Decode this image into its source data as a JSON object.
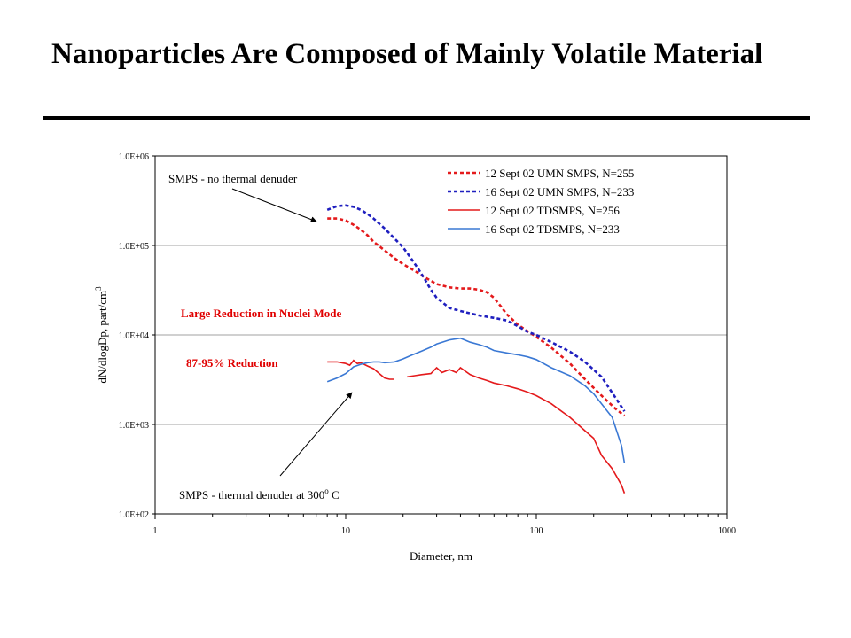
{
  "slide": {
    "title": "Nanoparticles Are Composed of Mainly Volatile Material"
  },
  "colors": {
    "red": "#e41a1c",
    "blue": "#1f1fbf",
    "light_blue": "#3a78d4",
    "grid": "#a0a0a0",
    "annotation_red": "#e00000"
  },
  "chart_data": {
    "type": "line",
    "title": "",
    "xlabel": "Diameter, nm",
    "ylabel": "dN/dlogDp, part/cm",
    "ylabel_superscript": "3",
    "x_scale": "log",
    "y_scale": "log",
    "xlim": [
      1,
      1000
    ],
    "ylim": [
      100,
      1000000
    ],
    "x_tick_labels": [
      "1",
      "10",
      "100",
      "1000"
    ],
    "y_tick_labels": [
      "1.0E+02",
      "1.0E+03",
      "1.0E+04",
      "1.0E+05",
      "1.0E+06"
    ],
    "y_tick_values": [
      100,
      1000,
      10000,
      100000,
      1000000
    ],
    "x_tick_values": [
      1,
      10,
      100,
      1000
    ],
    "grid": "horizontal",
    "legend_position": "top-right",
    "series": [
      {
        "name": "12 Sept 02 UMN SMPS, N=255",
        "style": "dashed",
        "color": "#e41a1c",
        "x": [
          8,
          9,
          10,
          11,
          12,
          13,
          14,
          16,
          18,
          20,
          23,
          26,
          30,
          35,
          40,
          45,
          50,
          55,
          60,
          65,
          70,
          80,
          90,
          100,
          120,
          150,
          180,
          220,
          260,
          290
        ],
        "y": [
          200000,
          200000,
          190000,
          170000,
          150000,
          130000,
          110000,
          88000,
          72000,
          62000,
          52000,
          44000,
          37000,
          34000,
          33000,
          33000,
          32000,
          30000,
          26000,
          21000,
          17000,
          13000,
          11000,
          9500,
          7200,
          4800,
          3200,
          2100,
          1500,
          1250
        ]
      },
      {
        "name": "16 Sept 02 UMN SMPS, N=233",
        "style": "dashed",
        "color": "#1f1fbf",
        "x": [
          8,
          9,
          10,
          11,
          12,
          13,
          14,
          16,
          18,
          20,
          22,
          24,
          26,
          28,
          30,
          35,
          40,
          50,
          60,
          70,
          80,
          90,
          100,
          120,
          150,
          180,
          220,
          260,
          290
        ],
        "y": [
          250000,
          275000,
          280000,
          270000,
          250000,
          225000,
          200000,
          155000,
          120000,
          95000,
          72000,
          55000,
          42000,
          32000,
          26000,
          20000,
          18500,
          16500,
          15500,
          14500,
          12500,
          10800,
          10000,
          8300,
          6500,
          5000,
          3400,
          2000,
          1400
        ]
      },
      {
        "name": "12 Sept 02 TDSMPS, N=256",
        "style": "solid",
        "color": "#e41a1c",
        "x": [
          8,
          9,
          10,
          10.5,
          11,
          11.5,
          12,
          13,
          14,
          15,
          16,
          17,
          18,
          null,
          21,
          23,
          25,
          28,
          30,
          32,
          35,
          38,
          40,
          45,
          50,
          55,
          60,
          70,
          80,
          90,
          100,
          120,
          150,
          180,
          200,
          220,
          250,
          280,
          290
        ],
        "y": [
          5000,
          5000,
          4800,
          4600,
          5200,
          4800,
          4900,
          4500,
          4200,
          3700,
          3300,
          3200,
          3200,
          null,
          3400,
          3500,
          3600,
          3700,
          4300,
          3800,
          4100,
          3800,
          4300,
          3600,
          3300,
          3100,
          2900,
          2700,
          2500,
          2300,
          2100,
          1700,
          1200,
          850,
          700,
          450,
          320,
          210,
          170
        ]
      },
      {
        "name": "16 Sept 02 TDSMPS, N=233",
        "style": "solid",
        "color": "#3a78d4",
        "x": [
          8,
          9,
          10,
          11,
          12,
          13,
          14,
          15,
          16,
          18,
          20,
          22,
          25,
          28,
          30,
          35,
          40,
          45,
          50,
          55,
          60,
          70,
          80,
          90,
          100,
          120,
          150,
          180,
          200,
          220,
          250,
          280,
          290
        ],
        "y": [
          3000,
          3300,
          3700,
          4400,
          4700,
          4900,
          5000,
          5000,
          4900,
          5000,
          5400,
          5900,
          6600,
          7300,
          7900,
          8800,
          9200,
          8300,
          7800,
          7300,
          6700,
          6300,
          6000,
          5700,
          5300,
          4300,
          3500,
          2700,
          2200,
          1700,
          1200,
          580,
          370
        ]
      }
    ],
    "annotations": [
      {
        "text": "SMPS - no thermal denuder",
        "color": "black"
      },
      {
        "text": "Large Reduction in Nuclei Mode",
        "color": "red"
      },
      {
        "text": "87-95% Reduction",
        "color": "red"
      },
      {
        "text": "SMPS - thermal denuder at 300",
        "superscript": "o",
        "suffix": " C",
        "color": "black"
      }
    ]
  }
}
